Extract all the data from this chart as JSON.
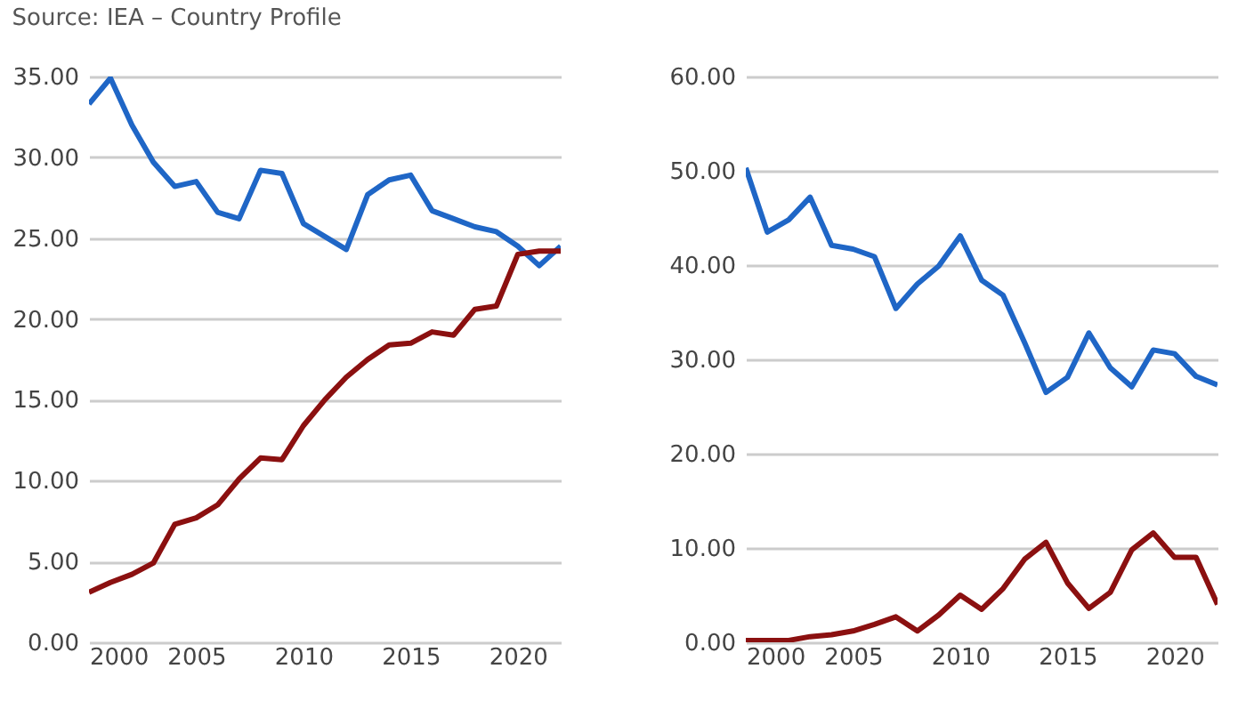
{
  "chart_data": [
    {
      "type": "line",
      "annotations": [
        "Source: IEA – Country Profile"
      ],
      "x": [
        2000,
        2001,
        2002,
        2003,
        2004,
        2005,
        2006,
        2007,
        2008,
        2009,
        2010,
        2011,
        2012,
        2013,
        2014,
        2015,
        2016,
        2017,
        2018,
        2019,
        2020,
        2021,
        2022
      ],
      "series": [
        {
          "color": "#1f66c6",
          "values": [
            33.3,
            34.9,
            32.0,
            29.7,
            28.2,
            28.5,
            26.6,
            26.2,
            29.2,
            29.0,
            25.9,
            25.1,
            24.3,
            27.7,
            28.6,
            28.9,
            26.7,
            26.2,
            25.7,
            25.4,
            24.5,
            23.3,
            24.5
          ]
        },
        {
          "color": "#8b1010",
          "values": [
            3.1,
            3.7,
            4.2,
            4.9,
            7.3,
            7.7,
            8.5,
            10.1,
            11.4,
            11.3,
            13.4,
            15.0,
            16.4,
            17.5,
            18.4,
            18.5,
            19.2,
            19.0,
            20.6,
            20.8,
            24.0,
            24.2,
            24.2
          ]
        }
      ],
      "xlim": [
        2000,
        2022
      ],
      "xticks": [
        2000,
        2005,
        2010,
        2015,
        2020
      ],
      "ylim": [
        0,
        35
      ],
      "yticks": [
        {
          "value": 0,
          "label": "0.00"
        },
        {
          "value": 5,
          "label": "5.00"
        },
        {
          "value": 10,
          "label": "10.00"
        },
        {
          "value": 15,
          "label": "15.00"
        },
        {
          "value": 20,
          "label": "20.00"
        },
        {
          "value": 25,
          "label": "25.00"
        },
        {
          "value": 30,
          "label": "30.00"
        },
        {
          "value": 35,
          "label": "35.00"
        }
      ],
      "grid": "y",
      "marker": "none",
      "line_style": "solid"
    },
    {
      "type": "line",
      "x": [
        2000,
        2001,
        2002,
        2003,
        2004,
        2005,
        2006,
        2007,
        2008,
        2009,
        2010,
        2011,
        2012,
        2013,
        2014,
        2015,
        2016,
        2017,
        2018,
        2019,
        2020,
        2021,
        2022
      ],
      "series": [
        {
          "color": "#1f66c6",
          "values": [
            50.3,
            43.5,
            44.8,
            47.2,
            42.1,
            41.7,
            40.9,
            35.4,
            38.0,
            39.9,
            43.1,
            38.4,
            36.8,
            31.8,
            26.5,
            28.1,
            32.8,
            29.1,
            27.1,
            31.0,
            30.6,
            28.2,
            27.3
          ]
        },
        {
          "color": "#8b1010",
          "values": [
            0.2,
            0.2,
            0.2,
            0.6,
            0.8,
            1.2,
            1.9,
            2.7,
            1.2,
            2.9,
            5.0,
            3.5,
            5.7,
            8.8,
            10.6,
            6.3,
            3.6,
            5.3,
            9.8,
            11.6,
            9.0,
            9.0,
            4.0
          ]
        }
      ],
      "xlim": [
        2000,
        2022
      ],
      "xticks": [
        2000,
        2005,
        2010,
        2015,
        2020
      ],
      "ylim": [
        0,
        60
      ],
      "yticks": [
        {
          "value": 0,
          "label": "0.00"
        },
        {
          "value": 10,
          "label": "10.00"
        },
        {
          "value": 20,
          "label": "20.00"
        },
        {
          "value": 30,
          "label": "30.00"
        },
        {
          "value": 40,
          "label": "40.00"
        },
        {
          "value": 50,
          "label": "50.00"
        },
        {
          "value": 60,
          "label": "60.00"
        }
      ],
      "grid": "y",
      "marker": "none",
      "line_style": "solid"
    }
  ]
}
